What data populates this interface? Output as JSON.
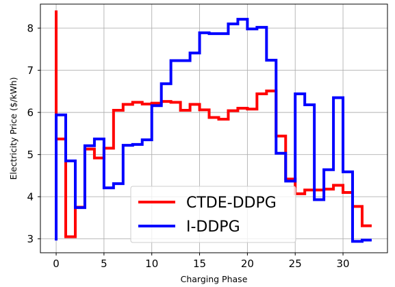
{
  "chart_data": {
    "type": "line",
    "step": "post",
    "xlabel": "Charging Phase",
    "ylabel": "Electricity Price ($/kWh)",
    "xlim": [
      -1.65,
      34.65
    ],
    "ylim": [
      2.67,
      8.57
    ],
    "xticks": [
      0,
      5,
      10,
      15,
      20,
      25,
      30
    ],
    "yticks": [
      3,
      4,
      5,
      6,
      7,
      8
    ],
    "grid": true,
    "legend_position": "lower-center",
    "x": [
      0,
      1,
      2,
      3,
      4,
      5,
      6,
      7,
      8,
      9,
      10,
      11,
      12,
      13,
      14,
      15,
      16,
      17,
      18,
      19,
      20,
      21,
      22,
      23,
      24,
      25,
      26,
      27,
      28,
      29,
      30,
      31,
      32,
      33
    ],
    "series": [
      {
        "name": "CTDE-DDPG",
        "color": "#ff0000",
        "start_value": 8.42,
        "values": [
          5.37,
          3.05,
          3.75,
          5.13,
          4.92,
          5.15,
          6.05,
          6.19,
          6.24,
          6.2,
          6.22,
          6.26,
          6.24,
          6.05,
          6.19,
          6.06,
          5.88,
          5.84,
          6.04,
          6.1,
          6.08,
          6.44,
          6.51,
          5.44,
          4.42,
          4.07,
          4.16,
          4.16,
          4.18,
          4.27,
          4.1,
          3.77,
          3.31,
          3.31
        ]
      },
      {
        "name": "I-DDPG",
        "color": "#0000ff",
        "start_value": 2.96,
        "values": [
          5.94,
          4.85,
          3.74,
          5.21,
          5.37,
          4.21,
          4.31,
          5.22,
          5.24,
          5.35,
          6.16,
          6.68,
          7.23,
          7.23,
          7.41,
          7.89,
          7.87,
          7.87,
          8.1,
          8.21,
          7.98,
          8.02,
          7.24,
          5.03,
          4.37,
          6.44,
          6.18,
          3.93,
          4.64,
          6.35,
          4.59,
          2.94,
          2.97,
          2.97
        ]
      }
    ]
  }
}
